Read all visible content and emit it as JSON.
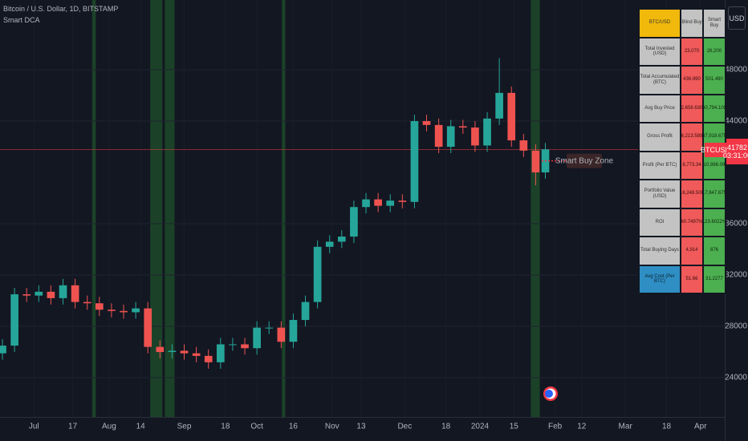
{
  "header": {
    "symbol": "Bitcoin / U.S. Dollar, 1D, BITSTAMP",
    "indicator": "Smart DCA",
    "currency": "USD"
  },
  "chart_data": {
    "type": "candlestick",
    "x": [
      0,
      5,
      10,
      15,
      20,
      25,
      30,
      35,
      40,
      45,
      50,
      55,
      60,
      65,
      70,
      75,
      80,
      85,
      90,
      95,
      100,
      105,
      110,
      115,
      120,
      125,
      130,
      135,
      140,
      145,
      150,
      155,
      160,
      165,
      170,
      175,
      180,
      185,
      190,
      195,
      200,
      205,
      210,
      215,
      220,
      224
    ],
    "open": [
      25900,
      26500,
      30500,
      30400,
      30700,
      30200,
      31200,
      29900,
      29800,
      29300,
      29200,
      29100,
      29400,
      26400,
      26000,
      26100,
      25900,
      25700,
      25200,
      26600,
      26600,
      26300,
      27900,
      27900,
      26800,
      28500,
      29900,
      34200,
      34600,
      35000,
      37300,
      37900,
      37400,
      37800,
      37700,
      44000,
      43700,
      42000,
      43600,
      43500,
      42100,
      44200,
      46200,
      42500,
      41700,
      40000
    ],
    "high": [
      27000,
      31000,
      31000,
      31200,
      31200,
      31700,
      31700,
      30400,
      30300,
      29800,
      29700,
      29900,
      29900,
      26900,
      26600,
      26600,
      26400,
      26200,
      27100,
      27100,
      27100,
      28400,
      28400,
      28400,
      29000,
      30400,
      34700,
      35100,
      35500,
      37800,
      38400,
      38400,
      38300,
      38300,
      44500,
      44500,
      44200,
      44100,
      44100,
      44000,
      44700,
      48900,
      46700,
      43000,
      42200,
      42300
    ],
    "low": [
      25400,
      26000,
      29900,
      29900,
      29700,
      29700,
      29400,
      29300,
      28800,
      28700,
      28600,
      28600,
      25900,
      25500,
      25500,
      25400,
      25200,
      24700,
      24700,
      26100,
      25800,
      25800,
      27400,
      26300,
      26300,
      28000,
      29400,
      33700,
      34100,
      34500,
      36800,
      36900,
      36900,
      37200,
      37200,
      43200,
      41500,
      41500,
      43000,
      41600,
      41600,
      43700,
      42000,
      41200,
      39000,
      39500
    ],
    "close": [
      26500,
      30500,
      30400,
      30700,
      30200,
      31200,
      29900,
      29800,
      29300,
      29200,
      29100,
      29400,
      26400,
      26000,
      26100,
      25900,
      25700,
      25200,
      26600,
      26600,
      26300,
      27900,
      27900,
      26800,
      28500,
      29900,
      34200,
      34600,
      35000,
      37300,
      37900,
      37400,
      37800,
      37700,
      44000,
      43700,
      42000,
      43600,
      43500,
      42100,
      44200,
      46200,
      42500,
      41700,
      40000,
      41800
    ],
    "up_color": "#26a69a",
    "down_color": "#ef5350",
    "xlim": [
      -1,
      298
    ],
    "ylim": [
      20940,
      53440
    ],
    "xticks": [
      {
        "value": 13,
        "label": "Jul"
      },
      {
        "value": 29,
        "label": "17"
      },
      {
        "value": 44,
        "label": "Aug"
      },
      {
        "value": 57,
        "label": "14"
      },
      {
        "value": 75,
        "label": "Sep"
      },
      {
        "value": 92,
        "label": "18"
      },
      {
        "value": 105,
        "label": "Oct"
      },
      {
        "value": 120,
        "label": "16"
      },
      {
        "value": 136,
        "label": "Nov"
      },
      {
        "value": 148,
        "label": "13"
      },
      {
        "value": 166,
        "label": "Dec"
      },
      {
        "value": 183,
        "label": "18"
      },
      {
        "value": 197,
        "label": "2024"
      },
      {
        "value": 211,
        "label": "15"
      },
      {
        "value": 228,
        "label": "Feb"
      },
      {
        "value": 239,
        "label": "12"
      },
      {
        "value": 257,
        "label": "Mar"
      },
      {
        "value": 274,
        "label": "18"
      },
      {
        "value": 288,
        "label": "Apr"
      }
    ],
    "yticks": [
      24000,
      28000,
      32000,
      36000,
      44000,
      48000
    ],
    "grid": true,
    "buy_zones": [
      [
        37,
        38.5
      ],
      [
        61,
        66
      ],
      [
        67,
        71
      ],
      [
        115.3,
        116.7
      ],
      [
        218,
        221.7
      ]
    ],
    "buy_zone_color": "#1e4d2b",
    "smart_buy_zone": {
      "label": "Smart Buy Zone",
      "value": 40900
    },
    "price_line": {
      "symbol": "BTCUSD",
      "value": 41782,
      "countdown": "03:31:06"
    }
  },
  "table": {
    "header": [
      "BTC/USD",
      "Blind Buy",
      "Smart Buy"
    ],
    "rows": [
      [
        "Total Invested (USD)",
        "23,070",
        "26,200"
      ],
      [
        "Total Accumulated (BTC)",
        "436.890",
        "501.490"
      ],
      [
        "Avg Buy Price",
        "32,656.6300",
        "30,794.108"
      ],
      [
        "Gross Profit",
        "36,213.5892",
        "37,918.675"
      ],
      [
        "Profit (Per BTC)",
        "8,773.34",
        "10,986.09"
      ],
      [
        "Portfolio Value (USD)",
        "16,248.500",
        "17,647.675"
      ],
      [
        "ROI",
        "60.7497%",
        "123.6022%"
      ],
      [
        "Total Buying Days",
        "4,914",
        "876"
      ],
      [
        "Avg Cost (Per BTC)",
        "51.66",
        "31.2277"
      ]
    ]
  }
}
